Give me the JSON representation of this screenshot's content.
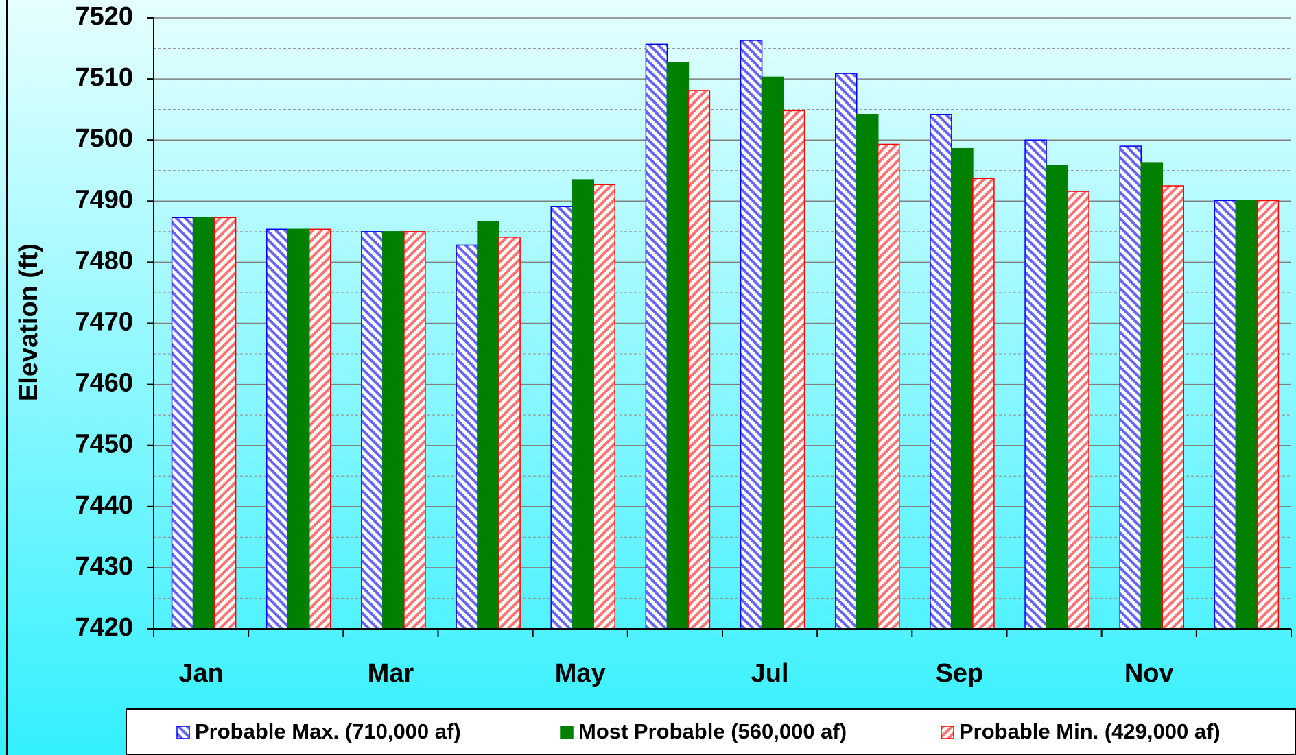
{
  "chart_data": {
    "type": "bar",
    "ylabel": "Elevation (ft)",
    "categories": [
      "Jan",
      null,
      "Mar",
      null,
      "May",
      null,
      "Jul",
      null,
      "Sep",
      null,
      "Nov",
      null
    ],
    "series": [
      {
        "name": "Probable Max. (710,000 af)",
        "color": "#0000ff",
        "hatch": true,
        "values": [
          7487.3,
          7485.4,
          7485.0,
          7482.8,
          7489.1,
          7515.7,
          7516.3,
          7510.9,
          7504.2,
          7500.0,
          7499.0,
          7490.1
        ]
      },
      {
        "name": "Most Probable (560,000 af)",
        "color": "#008000",
        "hatch": false,
        "values": [
          7487.3,
          7485.4,
          7485.0,
          7486.6,
          7493.5,
          7512.7,
          7510.3,
          7504.2,
          7498.6,
          7495.9,
          7496.3,
          7490.1
        ]
      },
      {
        "name": "Probable Min. (429,000 af)",
        "color": "#ff0000",
        "hatch": true,
        "values": [
          7487.3,
          7485.4,
          7485.0,
          7484.1,
          7492.7,
          7508.1,
          7504.8,
          7499.3,
          7493.7,
          7491.6,
          7492.5,
          7490.1
        ]
      }
    ],
    "ylim": [
      7420,
      7520
    ],
    "yticks": [
      7420,
      7430,
      7440,
      7450,
      7460,
      7470,
      7480,
      7490,
      7500,
      7510,
      7520
    ],
    "minor_yticks": [
      7425,
      7435,
      7445,
      7455,
      7465,
      7475,
      7485,
      7495,
      7505,
      7515
    ],
    "grid": true,
    "legend": "bottom"
  }
}
